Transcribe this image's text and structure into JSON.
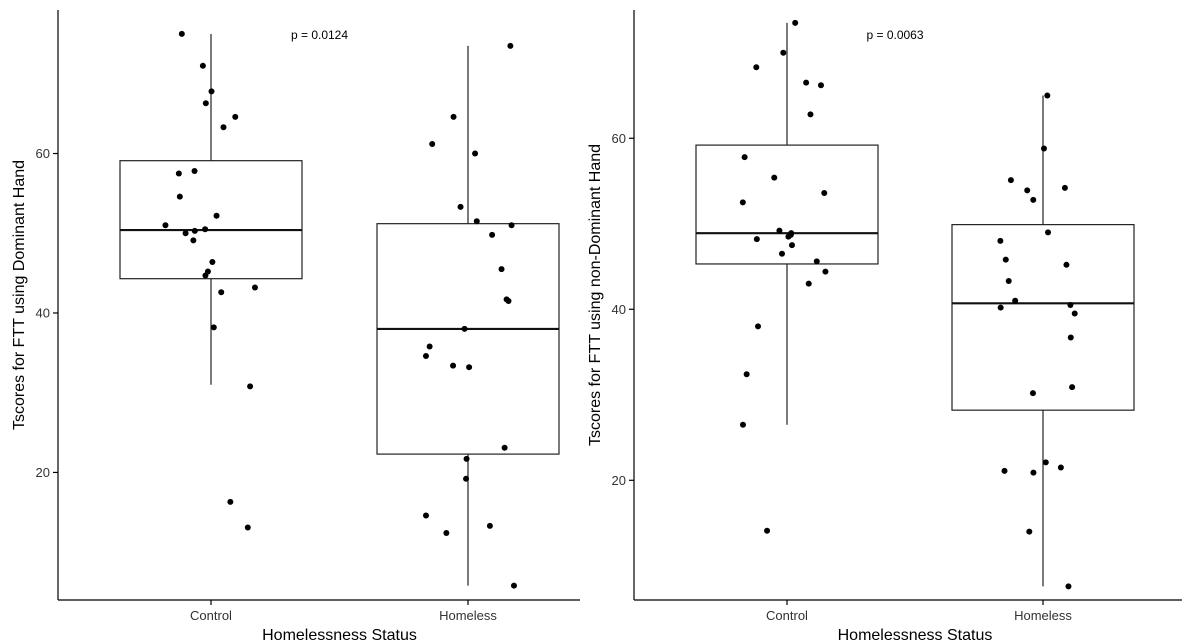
{
  "chart_data": [
    {
      "type": "box",
      "ylabel": "Tscores for FTT using Dominant Hand",
      "xlabel": "Homelessness Status",
      "annotation": "p = 0.0124",
      "categories": [
        "Control",
        "Homeless"
      ],
      "ylim": [
        4,
        78
      ],
      "yticks": [
        20,
        40,
        60
      ],
      "grid": false,
      "boxes": [
        {
          "category": "Control",
          "whisker_low": 31,
          "q1": 44.3,
          "median": 50.4,
          "q3": 59.1,
          "whisker_high": 75
        },
        {
          "category": "Homeless",
          "whisker_low": 5.8,
          "q1": 22.3,
          "median": 38,
          "q3": 51.2,
          "whisker_high": 73.5
        }
      ],
      "points": [
        {
          "category": "Control",
          "values": [
            75,
            71,
            67.8,
            66.3,
            64.6,
            63.3,
            57.8,
            57.5,
            54.6,
            52.2,
            51,
            50.5,
            50.3,
            50,
            49.1,
            46.4,
            45.2,
            44.7,
            43.2,
            42.6,
            38.2,
            30.8,
            16.3,
            13.1
          ]
        },
        {
          "category": "Homeless",
          "values": [
            73.5,
            64.6,
            61.2,
            60,
            53.3,
            51.5,
            51,
            49.8,
            45.5,
            41.7,
            41.5,
            38,
            35.8,
            34.6,
            33.4,
            33.2,
            23.1,
            21.7,
            19.2,
            14.6,
            13.3,
            12.4,
            5.8
          ]
        }
      ]
    },
    {
      "type": "box",
      "ylabel": "Tscores for FTT using non-Dominant Hand",
      "xlabel": "Homelessness Status",
      "annotation": "p = 0.0063",
      "categories": [
        "Control",
        "Homeless"
      ],
      "ylim": [
        6,
        75
      ],
      "yticks": [
        20,
        40,
        60
      ],
      "grid": false,
      "boxes": [
        {
          "category": "Control",
          "whisker_low": 26.5,
          "q1": 45.3,
          "median": 48.9,
          "q3": 59.2,
          "whisker_high": 73.5
        },
        {
          "category": "Homeless",
          "whisker_low": 7.6,
          "q1": 28.2,
          "median": 40.7,
          "q3": 49.9,
          "whisker_high": 65
        }
      ],
      "points": [
        {
          "category": "Control",
          "values": [
            73.5,
            70,
            68.3,
            66.5,
            66.2,
            62.8,
            57.8,
            55.4,
            53.6,
            52.5,
            49.2,
            48.9,
            48.7,
            48.5,
            48.2,
            47.5,
            46.5,
            45.6,
            44.4,
            43,
            38,
            32.4,
            26.5,
            14.1
          ]
        },
        {
          "category": "Homeless",
          "values": [
            65,
            58.8,
            55.1,
            54.2,
            53.9,
            52.8,
            49,
            48,
            45.8,
            45.2,
            43.3,
            41,
            40.5,
            40.2,
            39.5,
            36.7,
            30.9,
            30.2,
            22.1,
            21.5,
            21.1,
            20.9,
            14,
            7.6
          ]
        }
      ]
    }
  ]
}
